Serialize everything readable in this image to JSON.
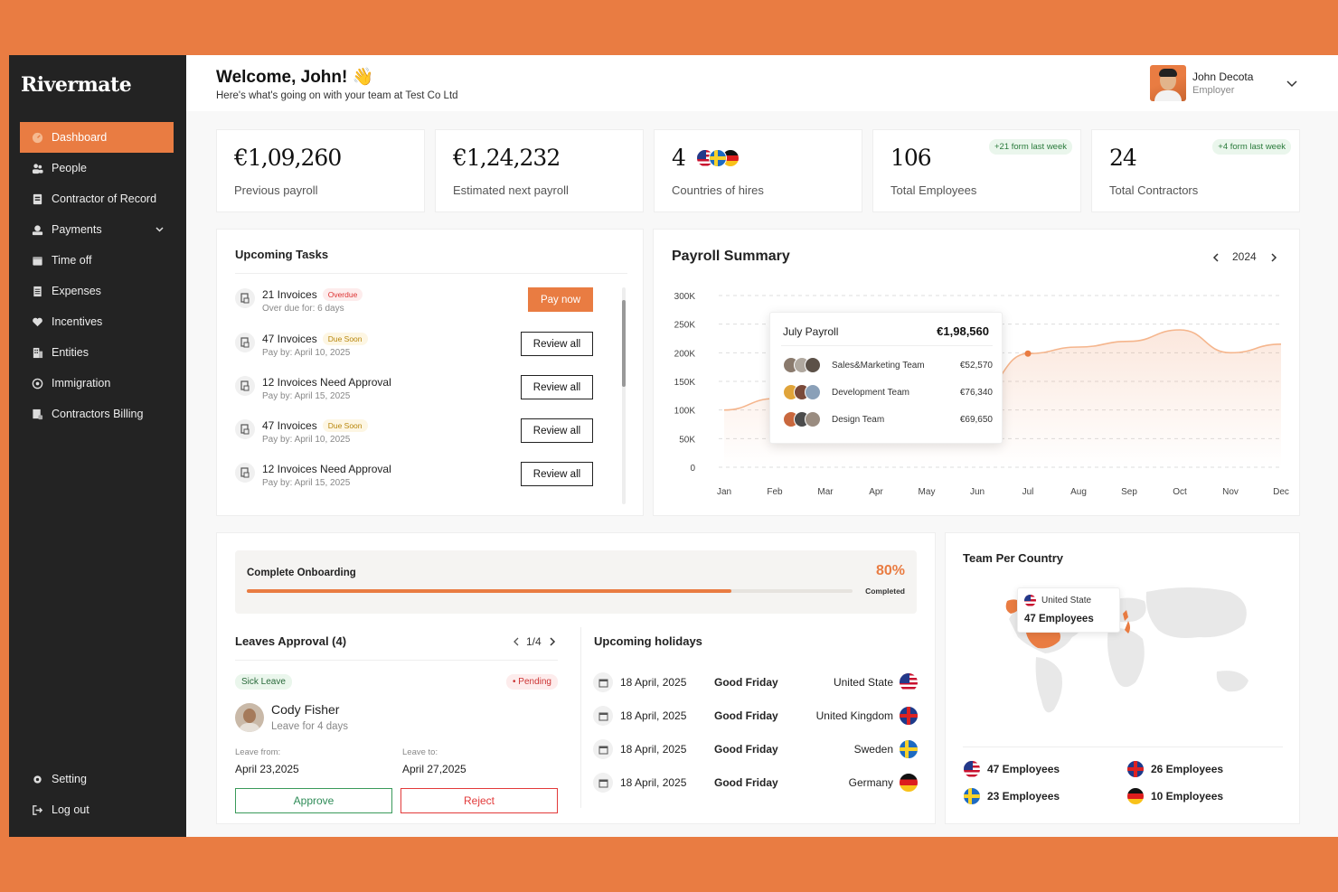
{
  "sidebar": {
    "logo": "Rivermate",
    "items": [
      {
        "label": "Dashboard"
      },
      {
        "label": "People"
      },
      {
        "label": "Contractor of Record"
      },
      {
        "label": "Payments"
      },
      {
        "label": "Time off"
      },
      {
        "label": "Expenses"
      },
      {
        "label": "Incentives"
      },
      {
        "label": "Entities"
      },
      {
        "label": "Immigration"
      },
      {
        "label": "Contractors Billing"
      }
    ],
    "bottom": [
      {
        "label": "Setting"
      },
      {
        "label": "Log out"
      }
    ]
  },
  "header": {
    "welcome": "Welcome, John! 👋",
    "subtitle": "Here's what's going on with your team at Test Co Ltd",
    "user_name": "John Decota",
    "user_role": "Employer"
  },
  "stats": [
    {
      "value": "€1,09,260",
      "label": "Previous payroll"
    },
    {
      "value": "€1,24,232",
      "label": "Estimated next payroll"
    },
    {
      "value": "4",
      "label": "Countries of hires"
    },
    {
      "value": "106",
      "label": "Total Employees",
      "badge": "+21 form last week"
    },
    {
      "value": "24",
      "label": "Total Contractors",
      "badge": "+4 form last week"
    }
  ],
  "tasks": {
    "title": "Upcoming Tasks",
    "items": [
      {
        "name": "21 Invoices",
        "tag": "Overdue",
        "sub": "Over due for: 6 days",
        "action": "Pay now"
      },
      {
        "name": "47 Invoices",
        "tag": "Due Soon",
        "sub": "Pay by: April 10, 2025",
        "action": "Review all"
      },
      {
        "name": "12 Invoices Need Approval",
        "tag": "",
        "sub": "Pay by: April 15, 2025",
        "action": "Review all"
      },
      {
        "name": "47 Invoices",
        "tag": "Due Soon",
        "sub": "Pay by: April 10, 2025",
        "action": "Review all"
      },
      {
        "name": "12 Invoices Need Approval",
        "tag": "",
        "sub": "Pay by: April 15, 2025",
        "action": "Review all"
      }
    ]
  },
  "payroll": {
    "title": "Payroll Summary",
    "year": "2024",
    "tooltip": {
      "title": "July Payroll",
      "value": "€1,98,560",
      "rows": [
        {
          "name": "Sales&Marketing Team",
          "value": "€52,570"
        },
        {
          "name": "Development Team",
          "value": "€76,340"
        },
        {
          "name": "Design Team",
          "value": "€69,650"
        }
      ]
    }
  },
  "chart_data": {
    "type": "line",
    "title": "Payroll Summary",
    "categories": [
      "Jan",
      "Feb",
      "Mar",
      "Apr",
      "May",
      "Jun",
      "Jul",
      "Aug",
      "Sep",
      "Oct",
      "Nov",
      "Dec"
    ],
    "values": [
      100000,
      120000,
      80000,
      110000,
      140000,
      130000,
      198560,
      210000,
      220000,
      240000,
      200000,
      215000
    ],
    "ylim": [
      0,
      300000
    ],
    "yticks": [
      "300K",
      "250K",
      "200K",
      "150K",
      "100K",
      "50K",
      "0"
    ],
    "highlight": "Jul",
    "grid": true
  },
  "onboarding": {
    "title": "Complete Onboarding",
    "percent_label": "80%",
    "percent": 80,
    "completed_label": "Completed"
  },
  "leaves": {
    "title": "Leaves Approval (4)",
    "pager": "1/4",
    "type": "Sick Leave",
    "status": "• Pending",
    "name": "Cody Fisher",
    "duration": "Leave for 4 days",
    "from_label": "Leave from:",
    "from": "April 23,2025",
    "to_label": "Leave to:",
    "to": "April 27,2025",
    "approve": "Approve",
    "reject": "Reject"
  },
  "holidays": {
    "title": "Upcoming holidays",
    "items": [
      {
        "date": "18 April, 2025",
        "name": "Good Friday",
        "country": "United State"
      },
      {
        "date": "18 April, 2025",
        "name": "Good Friday",
        "country": "United Kingdom"
      },
      {
        "date": "18 April, 2025",
        "name": "Good Friday",
        "country": "Sweden"
      },
      {
        "date": "18 April, 2025",
        "name": "Good Friday",
        "country": "Germany"
      }
    ]
  },
  "team_country": {
    "title": "Team Per Country",
    "tooltip_country": "United State",
    "tooltip_count": "47 Employees",
    "items": [
      {
        "label": "47 Employees"
      },
      {
        "label": "26 Employees"
      },
      {
        "label": "23 Employees"
      },
      {
        "label": "10 Employees"
      }
    ]
  },
  "colors": {
    "accent": "#E97C42",
    "sidebar": "#232323",
    "danger": "#E23A3A",
    "success": "#2E8B57"
  }
}
